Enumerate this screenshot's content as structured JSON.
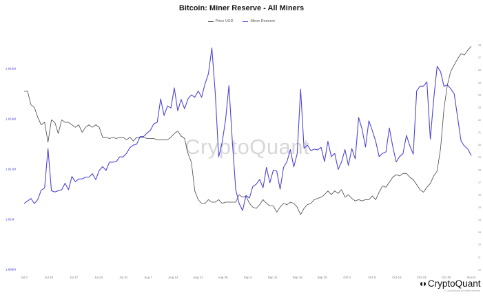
{
  "chart_data": {
    "type": "line",
    "title": "Bitcoin: Miner Reserve - All Miners",
    "legend_position": "top-center",
    "grid": false,
    "watermark": "CryptoQuant",
    "logo_text": "CryptoQuant",
    "copyright": "© CryptoQuant All rights reserved",
    "x_ticks": [
      "Jul 3",
      "Jul 10",
      "Jul 17",
      "Jul 24",
      "Jul 31",
      "Aug 7",
      "Aug 14",
      "Aug 21",
      "Aug 28",
      "Sep 4",
      "Sep 11",
      "Sep 18",
      "Sep 25",
      "Oct 2",
      "Oct 9",
      "Oct 16",
      "Oct 23",
      "Oct 30",
      "Nov 6"
    ],
    "left_axis": {
      "ticks": [
        "1.808M",
        "1.81M",
        "1.812M",
        "1.814M",
        "1.816M"
      ],
      "tick_values": [
        1808000,
        1810000,
        1812000,
        1814000,
        1816000
      ],
      "range": [
        1808000,
        1817100
      ],
      "color": "#4b45d8"
    },
    "right_axis": {
      "ticks": [
        "10",
        "11",
        "12",
        "13",
        "14",
        "15",
        "16",
        "17",
        "18",
        "19",
        "20",
        "21",
        "22",
        "23",
        "24",
        "25",
        "26",
        "27",
        "28"
      ],
      "tick_values": [
        10,
        11,
        12,
        13,
        14,
        15,
        16,
        17,
        18,
        19,
        20,
        21,
        22,
        23,
        24,
        25,
        26,
        27,
        28
      ],
      "range": [
        10,
        28.3
      ],
      "color": "#777777",
      "note": "right-axis tick labels too small to read in source"
    },
    "x_count": 132,
    "series": [
      {
        "name": "Price USD",
        "axis": "right",
        "color": "#444444",
        "values": [
          24.3,
          24.3,
          23.2,
          23,
          22.2,
          21.6,
          21.8,
          20.2,
          22,
          21.8,
          20.9,
          22,
          21.8,
          21.8,
          21.6,
          21.4,
          21.6,
          21,
          21.4,
          21.6,
          21.4,
          21.6,
          21.4,
          20.6,
          20.6,
          20.5,
          20.6,
          20.5,
          20.6,
          20.6,
          20.4,
          20.6,
          20.3,
          20.6,
          20.6,
          20.6,
          20.5,
          20.5,
          20.5,
          20.4,
          20.4,
          20.4,
          20.4,
          20.6,
          20.9,
          21.1,
          20.7,
          20.5,
          19.3,
          18.6,
          16.3,
          15.6,
          15.3,
          15.3,
          15.6,
          15.4,
          15.4,
          15.6,
          15.3,
          15.4,
          15.4,
          15.4,
          15.4,
          16,
          15.8,
          15.9,
          15.3,
          15,
          14.9,
          15.2,
          15.6,
          15.3,
          15.1,
          15.1,
          14.6,
          15,
          15.3,
          15.2,
          15.4,
          15.3,
          15,
          14.4,
          14.9,
          15.2,
          15.3,
          15.6,
          15.7,
          15.8,
          16,
          16.3,
          16,
          16.3,
          16.1,
          16.4,
          15.8,
          16,
          15.7,
          15.5,
          15.6,
          15.5,
          15.6,
          15.6,
          15.9,
          15.6,
          16.2,
          16.7,
          16.6,
          17,
          17.4,
          17.6,
          17.5,
          17.7,
          17.7,
          17.4,
          17.2,
          16.8,
          16.4,
          16.2,
          16.6,
          16.9,
          17.5,
          17.9,
          19.7,
          22.9,
          24.8,
          25.9,
          26.4,
          26.9,
          27.3,
          27.2,
          27.6,
          27.9
        ]
      },
      {
        "name": "Miner Reserve",
        "axis": "left",
        "color": "#4b45d8",
        "values": [
          1810630,
          1810730,
          1810830,
          1810630,
          1810790,
          1811160,
          1811250,
          1812820,
          1811140,
          1811090,
          1811140,
          1811180,
          1811440,
          1811180,
          1811710,
          1811500,
          1811610,
          1811610,
          1811680,
          1811680,
          1811820,
          1811580,
          1811950,
          1812100,
          1811950,
          1812280,
          1812280,
          1812300,
          1812490,
          1812490,
          1812630,
          1812860,
          1812960,
          1813000,
          1813300,
          1813300,
          1813440,
          1813550,
          1813810,
          1813870,
          1814800,
          1814140,
          1814520,
          1814440,
          1815240,
          1814330,
          1814780,
          1814410,
          1814800,
          1814960,
          1814870,
          1815120,
          1814870,
          1815400,
          1815810,
          1816830,
          1815020,
          1812490,
          1813050,
          1813950,
          1815330,
          1813100,
          1811180,
          1810630,
          1810350,
          1810950,
          1810850,
          1811310,
          1811400,
          1811590,
          1811260,
          1812070,
          1811460,
          1811960,
          1811930,
          1811200,
          1812070,
          1812300,
          1812780,
          1812090,
          1812620,
          1815190,
          1812830,
          1812960,
          1812740,
          1812800,
          1812770,
          1812870,
          1812300,
          1813110,
          1812500,
          1812630,
          1811990,
          1812290,
          1812780,
          1812150,
          1812820,
          1812410,
          1814060,
          1813600,
          1812880,
          1813930,
          1813540,
          1813110,
          1812500,
          1812630,
          1812690,
          1813640,
          1812900,
          1812290,
          1812500,
          1812620,
          1813350,
          1812930,
          1812600,
          1815120,
          1815310,
          1815310,
          1815480,
          1813200,
          1814810,
          1816100,
          1815890,
          1815300,
          1815360,
          1815200,
          1815000,
          1814060,
          1813120,
          1812920,
          1812800,
          1812540
        ]
      }
    ]
  }
}
